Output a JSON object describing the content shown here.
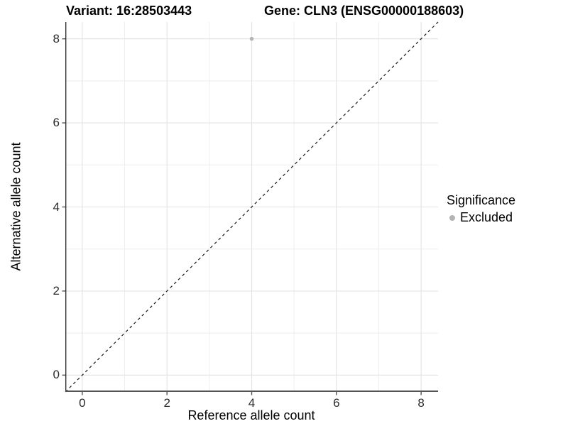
{
  "title": {
    "variant": "Variant: 16:28503443",
    "gene": "Gene: CLN3 (ENSG00000188603)"
  },
  "chart_data": {
    "type": "scatter",
    "title": "Variant: 16:28503443 | Gene: CLN3 (ENSG00000188603)",
    "xlabel": "Reference allele count",
    "ylabel": "Alternative allele count",
    "xlim": [
      -0.4,
      8.4
    ],
    "ylim": [
      -0.4,
      8.4
    ],
    "x_ticks": [
      0,
      2,
      4,
      6,
      8
    ],
    "y_ticks": [
      0,
      2,
      4,
      6,
      8
    ],
    "x_minor_ticks": [
      1,
      3,
      5,
      7
    ],
    "y_minor_ticks": [
      1,
      3,
      5,
      7
    ],
    "grid": true,
    "points": [
      {
        "x": 4,
        "y": 8,
        "series": "Excluded"
      }
    ],
    "reference_line": {
      "kind": "identity",
      "intercept": 0,
      "slope": 1,
      "style": "dashed"
    },
    "legend": {
      "title": "Significance",
      "position": "right",
      "entries": [
        {
          "label": "Excluded",
          "color": "#b4b4b4"
        }
      ]
    },
    "colors": {
      "point_excluded": "#b4b4b4",
      "major_grid": "#e3e3e3",
      "minor_grid": "#eeeeee",
      "axis_line_left": "#333333",
      "axis_line_bottom": "#555555",
      "tick_mark": "#555555",
      "dashed_line": "#1a1a1a",
      "background": "#ffffff"
    }
  }
}
